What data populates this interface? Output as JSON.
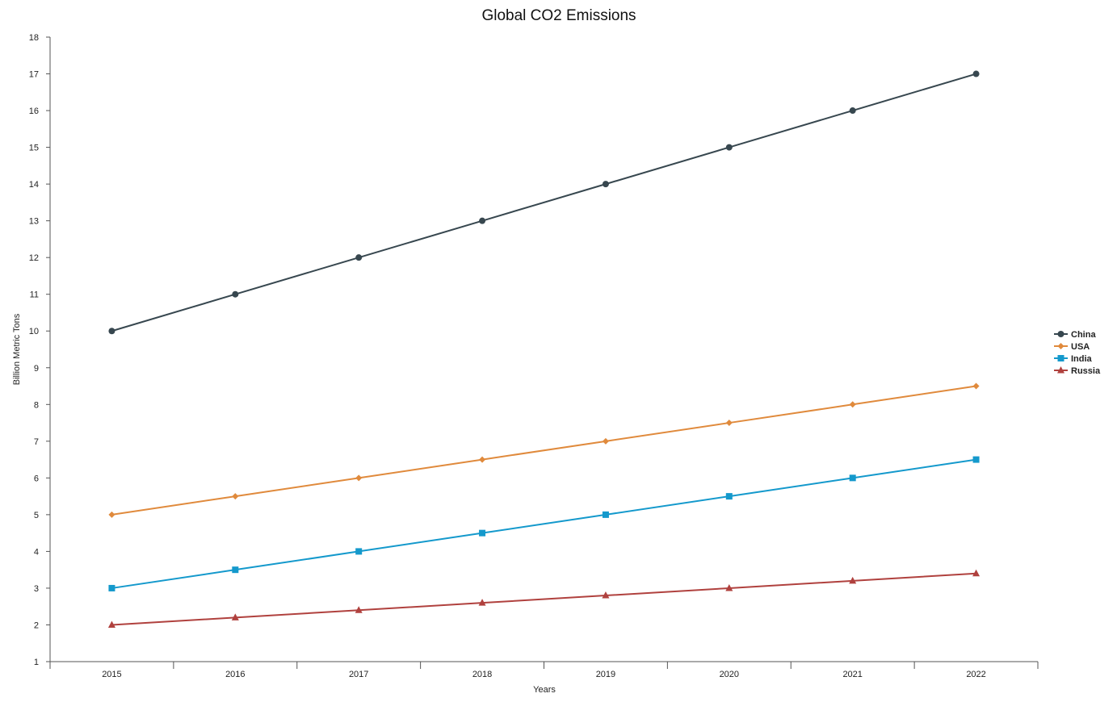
{
  "chart_data": {
    "type": "line",
    "title": "Global CO2 Emissions",
    "xlabel": "Years",
    "ylabel": "Billion Metric Tons",
    "categories": [
      "2015",
      "2016",
      "2017",
      "2018",
      "2019",
      "2020",
      "2021",
      "2022"
    ],
    "ylim": [
      1,
      18
    ],
    "yticks": [
      1,
      2,
      3,
      4,
      5,
      6,
      7,
      8,
      9,
      10,
      11,
      12,
      13,
      14,
      15,
      16,
      17,
      18
    ],
    "grid": false,
    "legend_position": "right",
    "series": [
      {
        "name": "China",
        "color": "#37474f",
        "marker": "circle",
        "values": [
          10,
          11,
          12,
          13,
          14,
          15,
          16,
          17
        ]
      },
      {
        "name": "USA",
        "color": "#e08a3c",
        "marker": "diamond",
        "values": [
          5,
          5.5,
          6,
          6.5,
          7,
          7.5,
          8,
          8.5
        ]
      },
      {
        "name": "India",
        "color": "#1499cc",
        "marker": "square",
        "values": [
          3,
          3.5,
          4,
          4.5,
          5,
          5.5,
          6,
          6.5
        ]
      },
      {
        "name": "Russia",
        "color": "#b0413e",
        "marker": "triangle",
        "values": [
          2,
          2.2,
          2.4,
          2.6,
          2.8,
          3,
          3.2,
          3.4
        ]
      }
    ]
  }
}
